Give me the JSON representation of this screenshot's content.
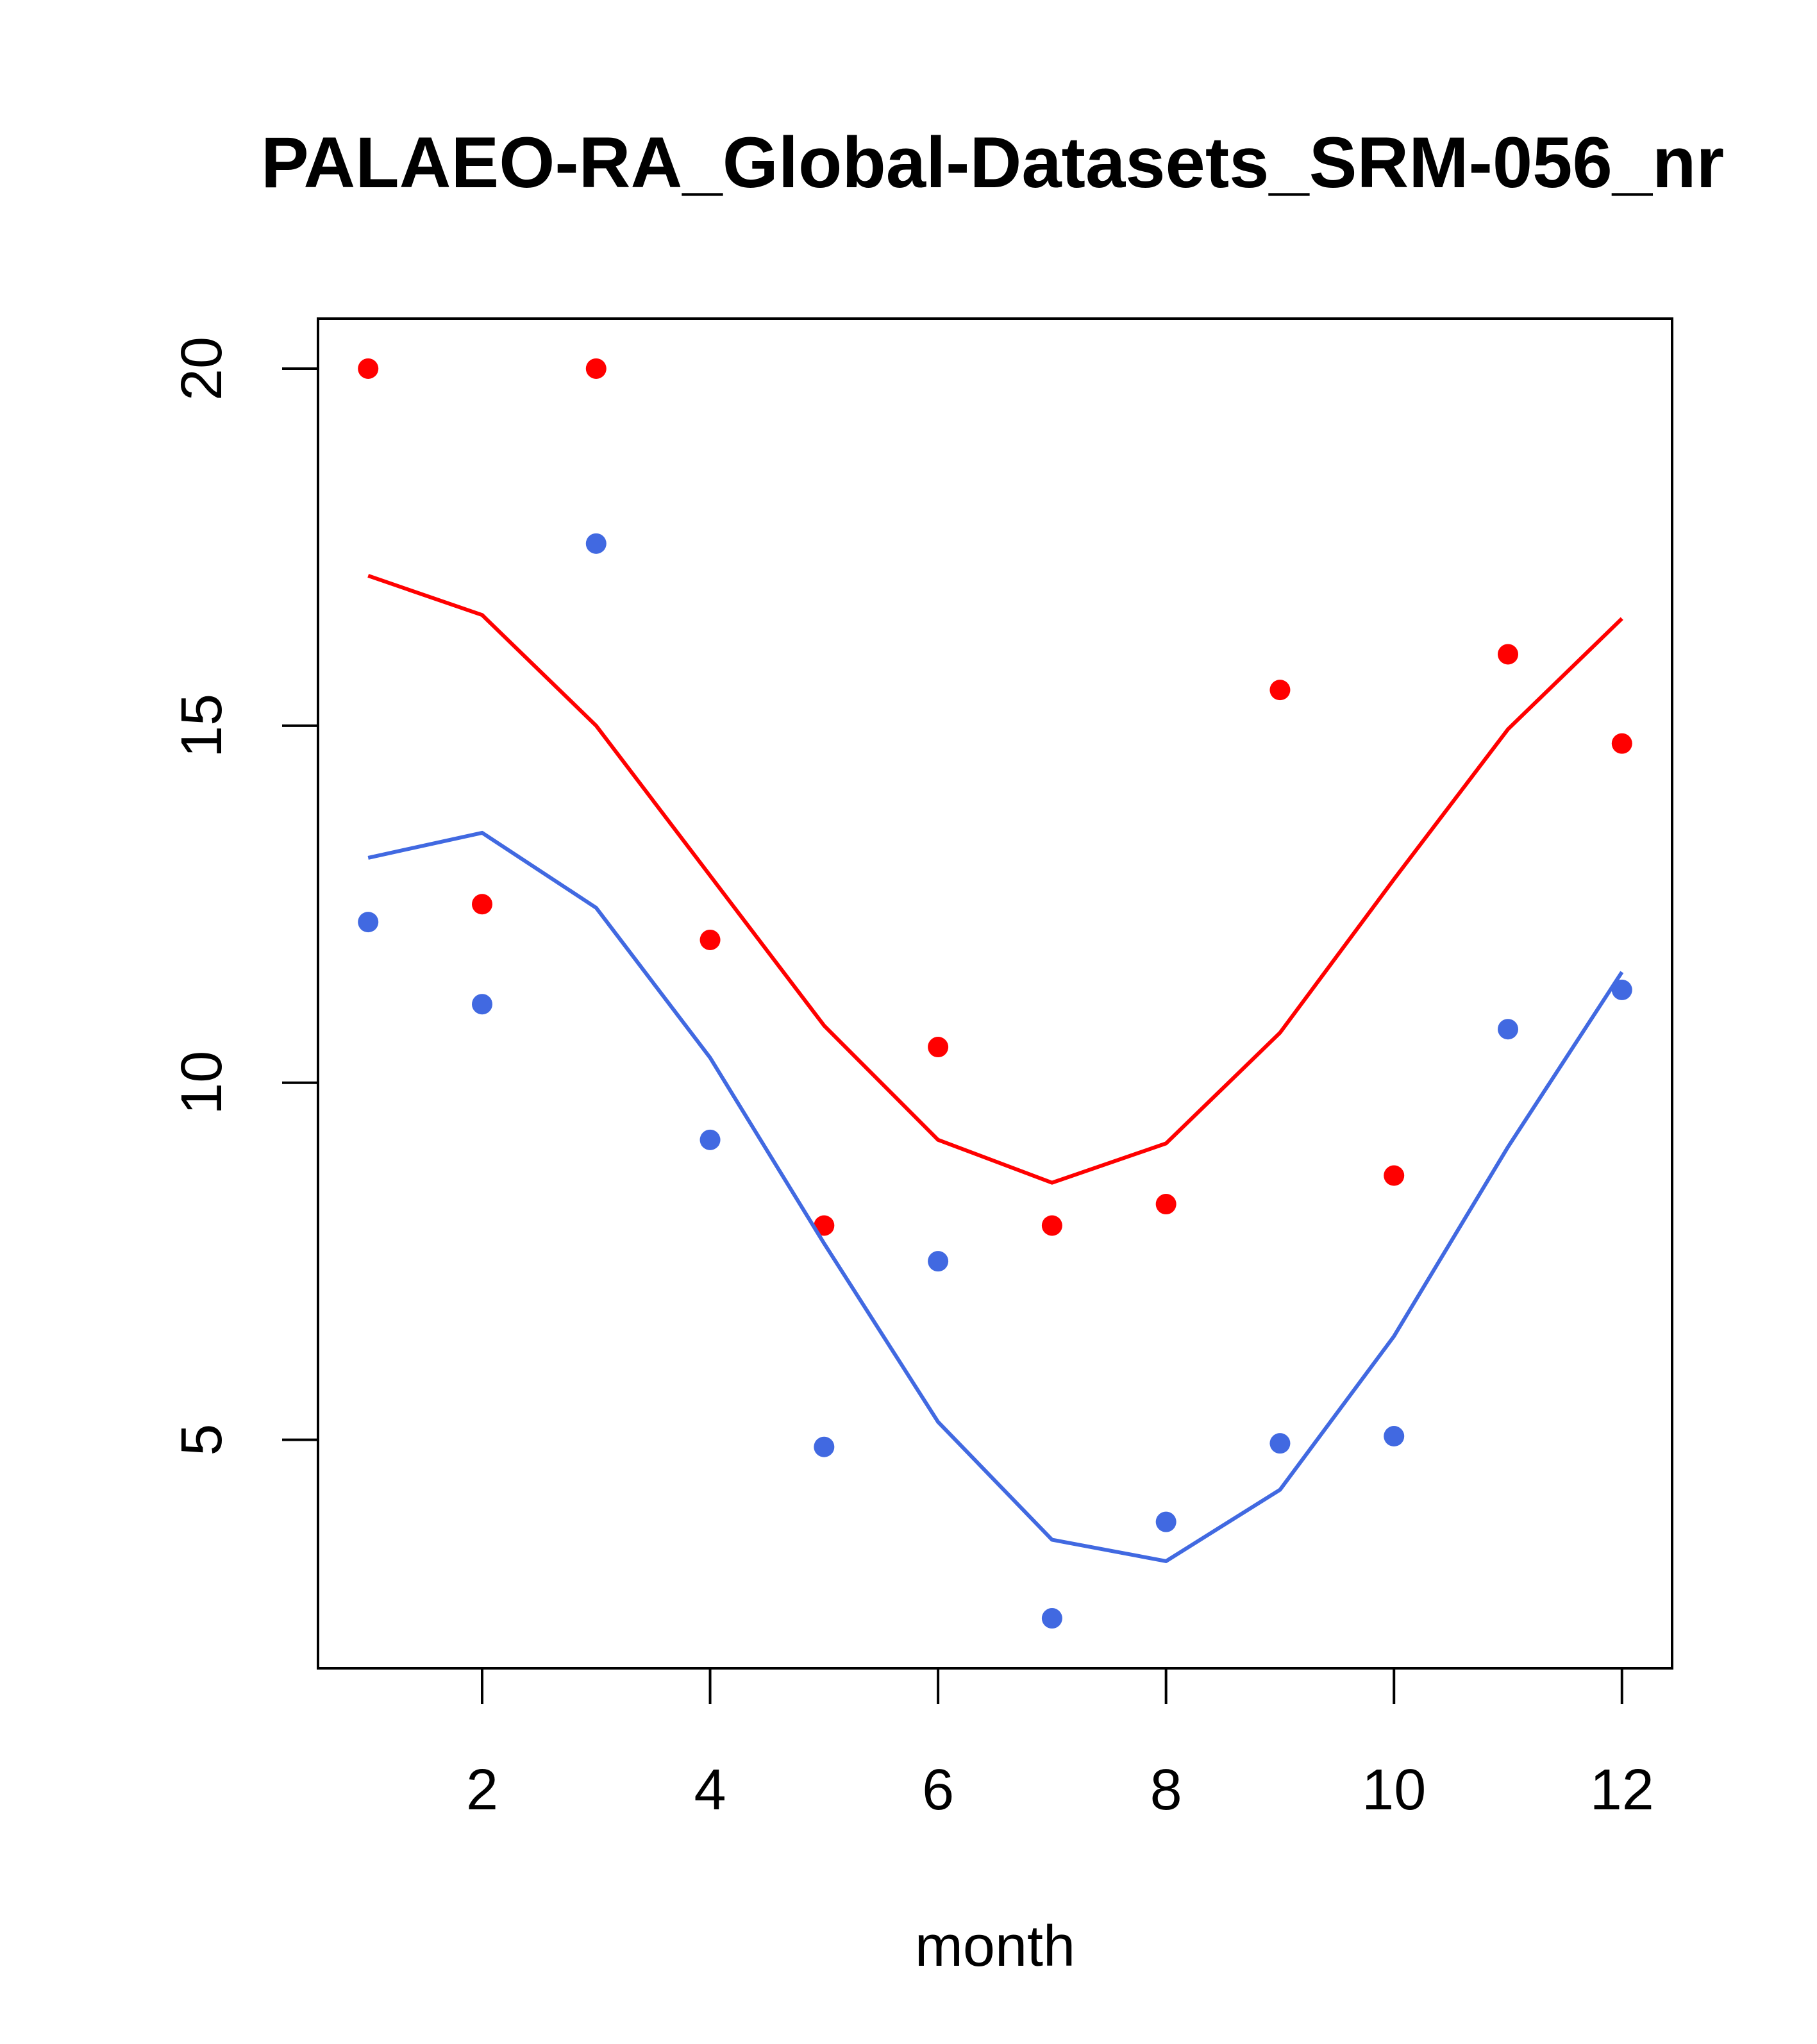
{
  "chart_data": {
    "type": "scatter",
    "title": "PALAEO-RA_Global-Datasets_SRM-056_nr",
    "xlabel": "month",
    "ylabel": "",
    "xlim": [
      0.56,
      12.44
    ],
    "ylim": [
      1.8,
      20.7
    ],
    "xticks": [
      2,
      4,
      6,
      8,
      10,
      12
    ],
    "yticks": [
      5,
      10,
      15,
      20
    ],
    "grid": false,
    "legend": "none",
    "series": [
      {
        "name": "red points",
        "kind": "points",
        "color": "#ff0000",
        "x": [
          1,
          2,
          3,
          4,
          5,
          6,
          7,
          8,
          9,
          10,
          11,
          12
        ],
        "values": [
          20.0,
          12.5,
          20.0,
          12.0,
          8.0,
          10.5,
          8.0,
          8.3,
          15.5,
          8.7,
          16.0,
          14.75
        ]
      },
      {
        "name": "red line",
        "kind": "line",
        "color": "#ff0000",
        "x": [
          1,
          2,
          3,
          4,
          5,
          6,
          7,
          8,
          9,
          10,
          11,
          12
        ],
        "values": [
          17.1,
          16.55,
          15.0,
          12.9,
          10.8,
          9.2,
          8.6,
          9.15,
          10.7,
          12.85,
          14.95,
          16.5
        ]
      },
      {
        "name": "blue points",
        "kind": "points",
        "color": "#4169e1",
        "x": [
          1,
          2,
          3,
          4,
          5,
          6,
          7,
          8,
          9,
          10,
          11,
          12
        ],
        "values": [
          12.25,
          11.1,
          17.55,
          9.2,
          4.9,
          7.5,
          2.5,
          3.85,
          4.95,
          5.05,
          10.75,
          11.3
        ]
      },
      {
        "name": "blue line",
        "kind": "line",
        "color": "#4169e1",
        "x": [
          1,
          2,
          3,
          4,
          5,
          6,
          7,
          8,
          9,
          10,
          11,
          12
        ],
        "values": [
          13.15,
          13.5,
          12.45,
          10.35,
          7.75,
          5.25,
          3.6,
          3.3,
          4.3,
          6.45,
          9.1,
          11.55
        ]
      }
    ]
  }
}
